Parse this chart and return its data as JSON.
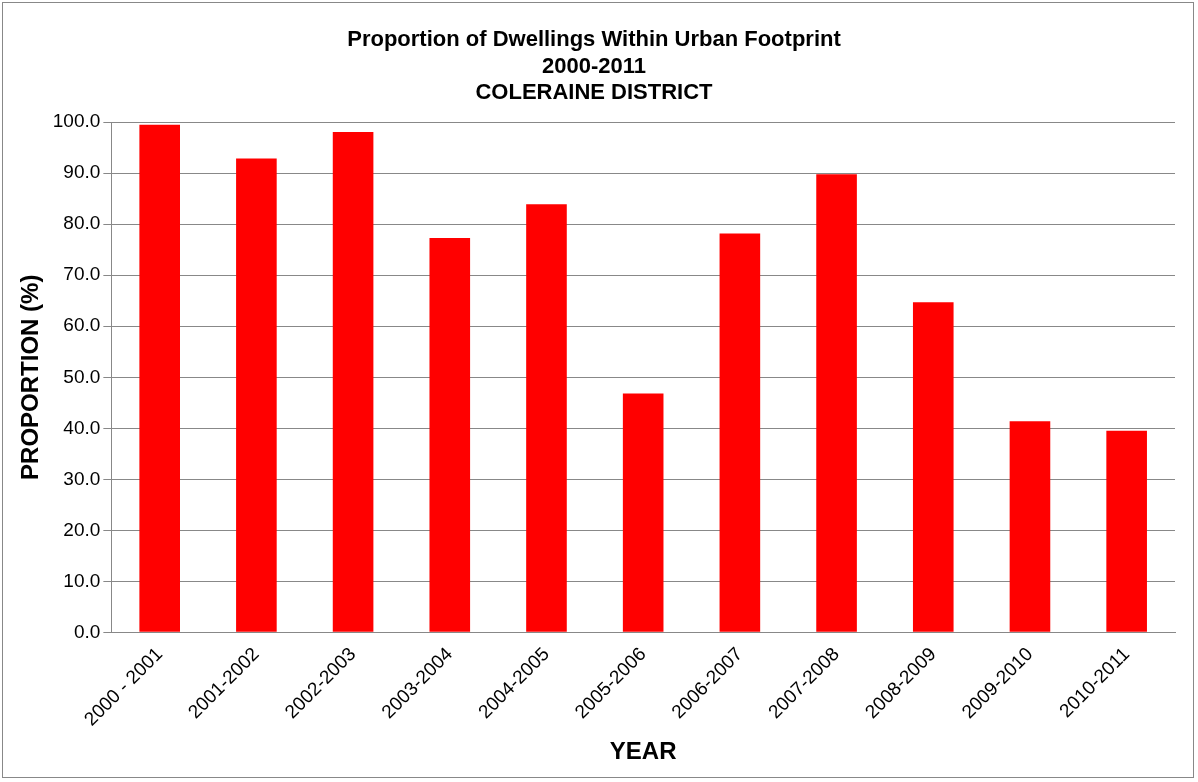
{
  "chart_data": {
    "type": "bar",
    "title": [
      "Proportion of Dwellings Within Urban Footprint",
      "2000-2011",
      "COLERAINE DISTRICT"
    ],
    "xlabel": "YEAR",
    "ylabel": "PROPORTION (%)",
    "categories": [
      "2000 - 2001",
      "2001-2002",
      "2002-2003",
      "2003-2004",
      "2004-2005",
      "2005-2006",
      "2006-2007",
      "2007-2008",
      "2008-2009",
      "2009-2010",
      "2010-2011"
    ],
    "values": [
      99.5,
      92.9,
      98.1,
      77.3,
      83.9,
      46.8,
      78.2,
      89.8,
      64.7,
      41.4,
      39.5
    ],
    "color": "#ff0000",
    "ylim": [
      0,
      100
    ],
    "yticks": [
      {
        "value": 0,
        "label": "0.0"
      },
      {
        "value": 10,
        "label": "10.0"
      },
      {
        "value": 20,
        "label": "20.0"
      },
      {
        "value": 30,
        "label": "30.0"
      },
      {
        "value": 40,
        "label": "40.0"
      },
      {
        "value": 50,
        "label": "50.0"
      },
      {
        "value": 60,
        "label": "60.0"
      },
      {
        "value": 70,
        "label": "70.0"
      },
      {
        "value": 80,
        "label": "80.0"
      },
      {
        "value": 90,
        "label": "90.0"
      },
      {
        "value": 100,
        "label": "100.0"
      }
    ],
    "grid": "y",
    "legend": false
  }
}
